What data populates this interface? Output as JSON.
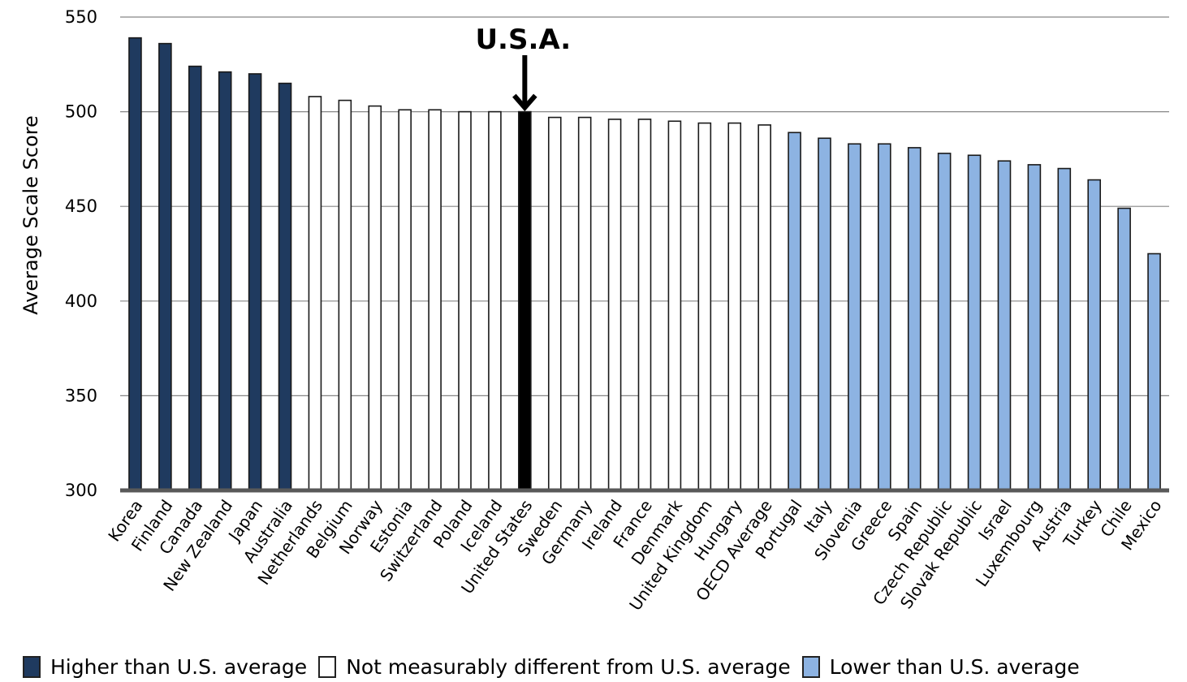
{
  "chart_data": {
    "type": "bar",
    "ylabel": "Average Scale Score",
    "ylim": [
      300,
      550
    ],
    "yticks": [
      300,
      350,
      400,
      450,
      500,
      550
    ],
    "grid": true,
    "legend_position": "bottom",
    "categories": [
      "Korea",
      "Finland",
      "Canada",
      "New Zealand",
      "Japan",
      "Australia",
      "Netherlands",
      "Belgium",
      "Norway",
      "Estonia",
      "Switzerland",
      "Poland",
      "Iceland",
      "United States",
      "Sweden",
      "Germany",
      "Ireland",
      "France",
      "Denmark",
      "United Kingdom",
      "Hungary",
      "OECD Average",
      "Portugal",
      "Italy",
      "Slovenia",
      "Greece",
      "Spain",
      "Czech Republic",
      "Slovak Republic",
      "Israel",
      "Luxembourg",
      "Austria",
      "Turkey",
      "Chile",
      "Mexico"
    ],
    "values": [
      539,
      536,
      524,
      521,
      520,
      515,
      508,
      506,
      503,
      501,
      501,
      500,
      500,
      500,
      497,
      497,
      496,
      496,
      495,
      494,
      494,
      493,
      489,
      486,
      483,
      483,
      481,
      478,
      477,
      474,
      472,
      470,
      464,
      449,
      425
    ],
    "groups": [
      "higher",
      "higher",
      "higher",
      "higher",
      "higher",
      "higher",
      "same",
      "same",
      "same",
      "same",
      "same",
      "same",
      "same",
      "usa",
      "same",
      "same",
      "same",
      "same",
      "same",
      "same",
      "same",
      "same",
      "lower",
      "lower",
      "lower",
      "lower",
      "lower",
      "lower",
      "lower",
      "lower",
      "lower",
      "lower",
      "lower",
      "lower",
      "lower"
    ],
    "colors": {
      "higher": "#1f3a5f",
      "same": "#ffffff",
      "usa": "#000000",
      "lower": "#8db3e2",
      "outline": "#1a1a1a",
      "grid": "#868686",
      "axis": "#595959"
    },
    "annotation": {
      "text": "U.S.A.",
      "category": "United States",
      "arrow": "down"
    },
    "legend": [
      {
        "key": "higher",
        "label": "Higher than U.S. average",
        "color": "#1f3a5f"
      },
      {
        "key": "same",
        "label": "Not measurably different from U.S. average",
        "color": "#ffffff"
      },
      {
        "key": "lower",
        "label": "Lower than U.S. average",
        "color": "#8db3e2"
      }
    ]
  }
}
